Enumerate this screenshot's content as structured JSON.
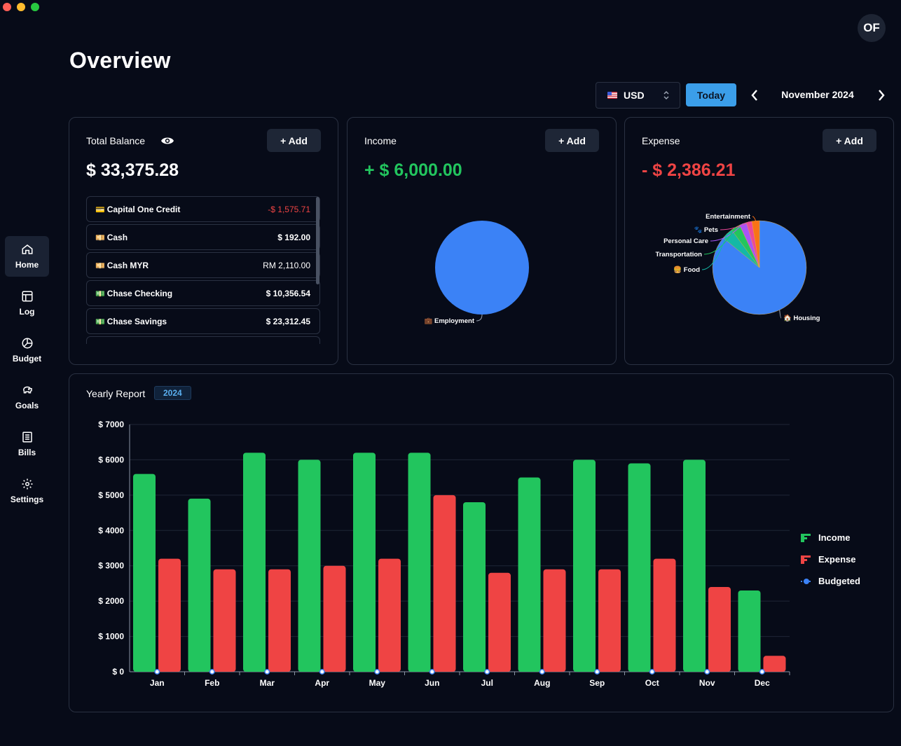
{
  "app": {
    "page_title": "Overview",
    "avatar_initials": "OF"
  },
  "sidebar": {
    "items": [
      {
        "label": "Home",
        "icon": "home-icon",
        "active": true
      },
      {
        "label": "Log",
        "icon": "table-icon"
      },
      {
        "label": "Budget",
        "icon": "pie-chart-icon"
      },
      {
        "label": "Goals",
        "icon": "piggy-bank-icon"
      },
      {
        "label": "Bills",
        "icon": "receipt-icon"
      },
      {
        "label": "Settings",
        "icon": "gear-icon"
      }
    ]
  },
  "toolbar": {
    "currency": "USD",
    "today_label": "Today",
    "month_label": "November 2024"
  },
  "balance_card": {
    "title": "Total Balance",
    "amount": "$ 33,375.28",
    "add_label": "+ Add",
    "accounts": [
      {
        "icon": "💳",
        "name": "Capital One Credit",
        "amount": "-$ 1,575.71",
        "negative": true
      },
      {
        "icon": "💴",
        "name": "Cash",
        "amount": "$ 192.00"
      },
      {
        "icon": "💴",
        "name": "Cash MYR",
        "amount": "RM 2,110.00"
      },
      {
        "icon": "💵",
        "name": "Chase Checking",
        "amount": "$ 10,356.54"
      },
      {
        "icon": "💵",
        "name": "Chase Savings",
        "amount": "$ 23,312.45"
      }
    ]
  },
  "income_card": {
    "title": "Income",
    "amount": "+ $ 6,000.00",
    "add_label": "+ Add",
    "pie_labels": [
      "💼 Employment"
    ]
  },
  "expense_card": {
    "title": "Expense",
    "amount": "- $ 2,386.21",
    "add_label": "+ Add",
    "pie_labels": [
      "Entertainment",
      "🐾 Pets",
      "Personal Care",
      "Transportation",
      "🍔 Food",
      "🏠 Housing"
    ]
  },
  "colors": {
    "income": "#22c55e",
    "expense": "#ef4444",
    "budgeted": "#3b82f6",
    "accent": "#3b9ee9"
  },
  "chart_data": [
    {
      "type": "pie",
      "title": "Income",
      "slices": [
        {
          "label": "Employment",
          "value": 6000.0,
          "color": "#3b82f6"
        }
      ]
    },
    {
      "type": "pie",
      "title": "Expense",
      "slices": [
        {
          "label": "Housing",
          "value": 2050,
          "color": "#3b82f6"
        },
        {
          "label": "Food",
          "value": 95,
          "color": "#14b8a6"
        },
        {
          "label": "Transportation",
          "value": 75,
          "color": "#22c55e"
        },
        {
          "label": "Personal Care",
          "value": 60,
          "color": "#a855f7"
        },
        {
          "label": "Pets",
          "value": 45,
          "color": "#ec4899"
        },
        {
          "label": "Entertainment",
          "value": 61.21,
          "color": "#f97316"
        }
      ]
    },
    {
      "type": "bar",
      "title": "Yearly Report",
      "year_badge": "2024",
      "categories": [
        "Jan",
        "Feb",
        "Mar",
        "Apr",
        "May",
        "Jun",
        "Jul",
        "Aug",
        "Sep",
        "Oct",
        "Nov",
        "Dec"
      ],
      "series": [
        {
          "name": "Income",
          "values": [
            5600,
            4900,
            6200,
            6000,
            6200,
            6200,
            4800,
            5500,
            6000,
            5900,
            6000,
            2300
          ]
        },
        {
          "name": "Expense",
          "values": [
            3200,
            2900,
            2900,
            3000,
            3200,
            5000,
            2800,
            2900,
            2900,
            3200,
            2400,
            450
          ]
        },
        {
          "name": "Budgeted",
          "values": [
            0,
            0,
            0,
            0,
            0,
            0,
            0,
            0,
            0,
            0,
            0,
            0
          ]
        }
      ],
      "y_ticks": [
        "$ 0",
        "$ 1000",
        "$ 2000",
        "$ 3000",
        "$ 4000",
        "$ 5000",
        "$ 6000",
        "$ 7000"
      ],
      "ylim": [
        0,
        7000
      ],
      "legend": [
        "Income",
        "Expense",
        "Budgeted"
      ],
      "legend_position": "right"
    }
  ]
}
